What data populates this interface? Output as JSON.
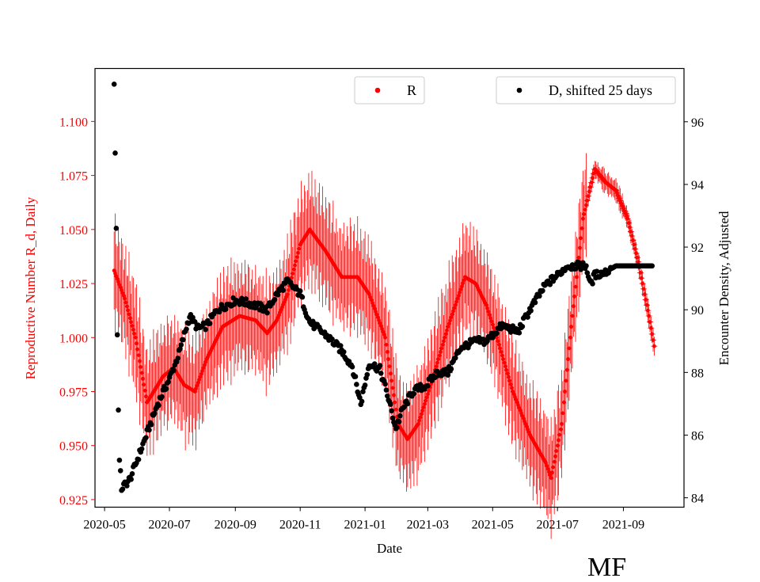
{
  "chart_data": {
    "type": "scatter",
    "title": "",
    "xlabel": "Date",
    "x_range": [
      "2020-04-22",
      "2021-10-28"
    ],
    "x_ticks": [
      "2020-05",
      "2020-07",
      "2020-09",
      "2020-11",
      "2021-01",
      "2021-03",
      "2021-05",
      "2021-07",
      "2021-09"
    ],
    "y_left": {
      "label": "Reproductive Number R_d, Daily",
      "color": "#ff0000",
      "range": [
        0.9215,
        1.1245
      ],
      "ticks": [
        "0.925",
        "0.950",
        "0.975",
        "1.000",
        "1.025",
        "1.050",
        "1.075",
        "1.100"
      ]
    },
    "y_right": {
      "label": "Encounter Density, Adjusted",
      "color": "#000000",
      "range": [
        83.7,
        97.7
      ],
      "ticks": [
        "84",
        "86",
        "88",
        "90",
        "92",
        "94",
        "96"
      ]
    },
    "legend": [
      {
        "label": "R",
        "color": "#ff0000",
        "position": "top-center"
      },
      {
        "label": "D, shifted 25 days",
        "color": "#000000",
        "position": "top-right"
      }
    ],
    "series": [
      {
        "name": "R",
        "axis": "left",
        "color": "#ff0000",
        "marker": "point with error bars",
        "start_date": "2020-05-10",
        "end_date": "2021-09-30",
        "key_points": [
          [
            "2020-05-10",
            1.031
          ],
          [
            "2020-05-20",
            1.018
          ],
          [
            "2020-05-30",
            1.0
          ],
          [
            "2020-06-10",
            0.97
          ],
          [
            "2020-06-25",
            0.982
          ],
          [
            "2020-07-05",
            0.986
          ],
          [
            "2020-07-15",
            0.978
          ],
          [
            "2020-07-25",
            0.975
          ],
          [
            "2020-08-05",
            0.99
          ],
          [
            "2020-08-20",
            1.005
          ],
          [
            "2020-09-05",
            1.01
          ],
          [
            "2020-09-20",
            1.008
          ],
          [
            "2020-10-01",
            1.002
          ],
          [
            "2020-10-10",
            1.008
          ],
          [
            "2020-10-20",
            1.02
          ],
          [
            "2020-11-01",
            1.043
          ],
          [
            "2020-11-10",
            1.05
          ],
          [
            "2020-11-25",
            1.04
          ],
          [
            "2020-12-10",
            1.028
          ],
          [
            "2020-12-25",
            1.028
          ],
          [
            "2021-01-05",
            1.02
          ],
          [
            "2021-01-20",
            1.0
          ],
          [
            "2021-02-01",
            0.96
          ],
          [
            "2021-02-10",
            0.953
          ],
          [
            "2021-02-20",
            0.96
          ],
          [
            "2021-03-05",
            0.98
          ],
          [
            "2021-03-20",
            1.005
          ],
          [
            "2021-04-05",
            1.028
          ],
          [
            "2021-04-15",
            1.025
          ],
          [
            "2021-04-25",
            1.015
          ],
          [
            "2021-05-05",
            1.0
          ],
          [
            "2021-05-20",
            0.975
          ],
          [
            "2021-06-05",
            0.955
          ],
          [
            "2021-06-20",
            0.942
          ],
          [
            "2021-06-25",
            0.935
          ],
          [
            "2021-07-05",
            0.96
          ],
          [
            "2021-07-15",
            1.01
          ],
          [
            "2021-07-25",
            1.055
          ],
          [
            "2021-08-05",
            1.078
          ],
          [
            "2021-08-15",
            1.072
          ],
          [
            "2021-08-25",
            1.068
          ],
          [
            "2021-09-05",
            1.055
          ],
          [
            "2021-09-15",
            1.035
          ],
          [
            "2021-09-25",
            1.01
          ],
          [
            "2021-09-30",
            0.996
          ]
        ]
      },
      {
        "name": "D, shifted 25 days",
        "axis": "right",
        "color": "#000000",
        "marker": "circle",
        "key_points": [
          [
            "2020-05-10",
            97.2
          ],
          [
            "2020-05-11",
            95.0
          ],
          [
            "2020-05-12",
            92.6
          ],
          [
            "2020-05-13",
            89.2
          ],
          [
            "2020-05-14",
            86.8
          ],
          [
            "2020-05-15",
            85.2
          ],
          [
            "2020-05-17",
            84.3
          ],
          [
            "2020-05-25",
            84.6
          ],
          [
            "2020-06-05",
            85.6
          ],
          [
            "2020-06-20",
            87.0
          ],
          [
            "2020-07-01",
            87.8
          ],
          [
            "2020-07-10",
            88.6
          ],
          [
            "2020-07-20",
            89.8
          ],
          [
            "2020-07-28",
            89.4
          ],
          [
            "2020-08-05",
            89.5
          ],
          [
            "2020-08-15",
            90.0
          ],
          [
            "2020-09-01",
            90.3
          ],
          [
            "2020-09-15",
            90.2
          ],
          [
            "2020-10-01",
            90.0
          ],
          [
            "2020-10-10",
            90.5
          ],
          [
            "2020-10-20",
            90.9
          ],
          [
            "2020-11-01",
            90.5
          ],
          [
            "2020-11-10",
            89.6
          ],
          [
            "2020-11-25",
            89.2
          ],
          [
            "2020-12-10",
            88.7
          ],
          [
            "2020-12-20",
            88.2
          ],
          [
            "2020-12-28",
            87.0
          ],
          [
            "2021-01-05",
            88.3
          ],
          [
            "2021-01-15",
            88.1
          ],
          [
            "2021-01-22",
            87.3
          ],
          [
            "2021-01-30",
            86.2
          ],
          [
            "2021-02-05",
            86.8
          ],
          [
            "2021-02-15",
            87.4
          ],
          [
            "2021-02-28",
            87.6
          ],
          [
            "2021-03-10",
            88.0
          ],
          [
            "2021-03-20",
            88.0
          ],
          [
            "2021-04-01",
            88.8
          ],
          [
            "2021-04-15",
            89.0
          ],
          [
            "2021-04-25",
            89.0
          ],
          [
            "2021-05-10",
            89.5
          ],
          [
            "2021-05-25",
            89.3
          ],
          [
            "2021-06-05",
            90.0
          ],
          [
            "2021-06-20",
            90.8
          ],
          [
            "2021-07-01",
            91.1
          ],
          [
            "2021-07-10",
            91.4
          ],
          [
            "2021-07-20",
            91.4
          ],
          [
            "2021-07-28",
            91.4
          ],
          [
            "2021-08-01",
            90.8
          ],
          [
            "2021-08-05",
            91.1
          ],
          [
            "2021-08-15",
            91.2
          ],
          [
            "2021-08-25",
            91.4
          ],
          [
            "2021-09-10",
            91.4
          ],
          [
            "2021-09-28",
            91.4
          ]
        ]
      }
    ]
  },
  "watermark": "MF"
}
